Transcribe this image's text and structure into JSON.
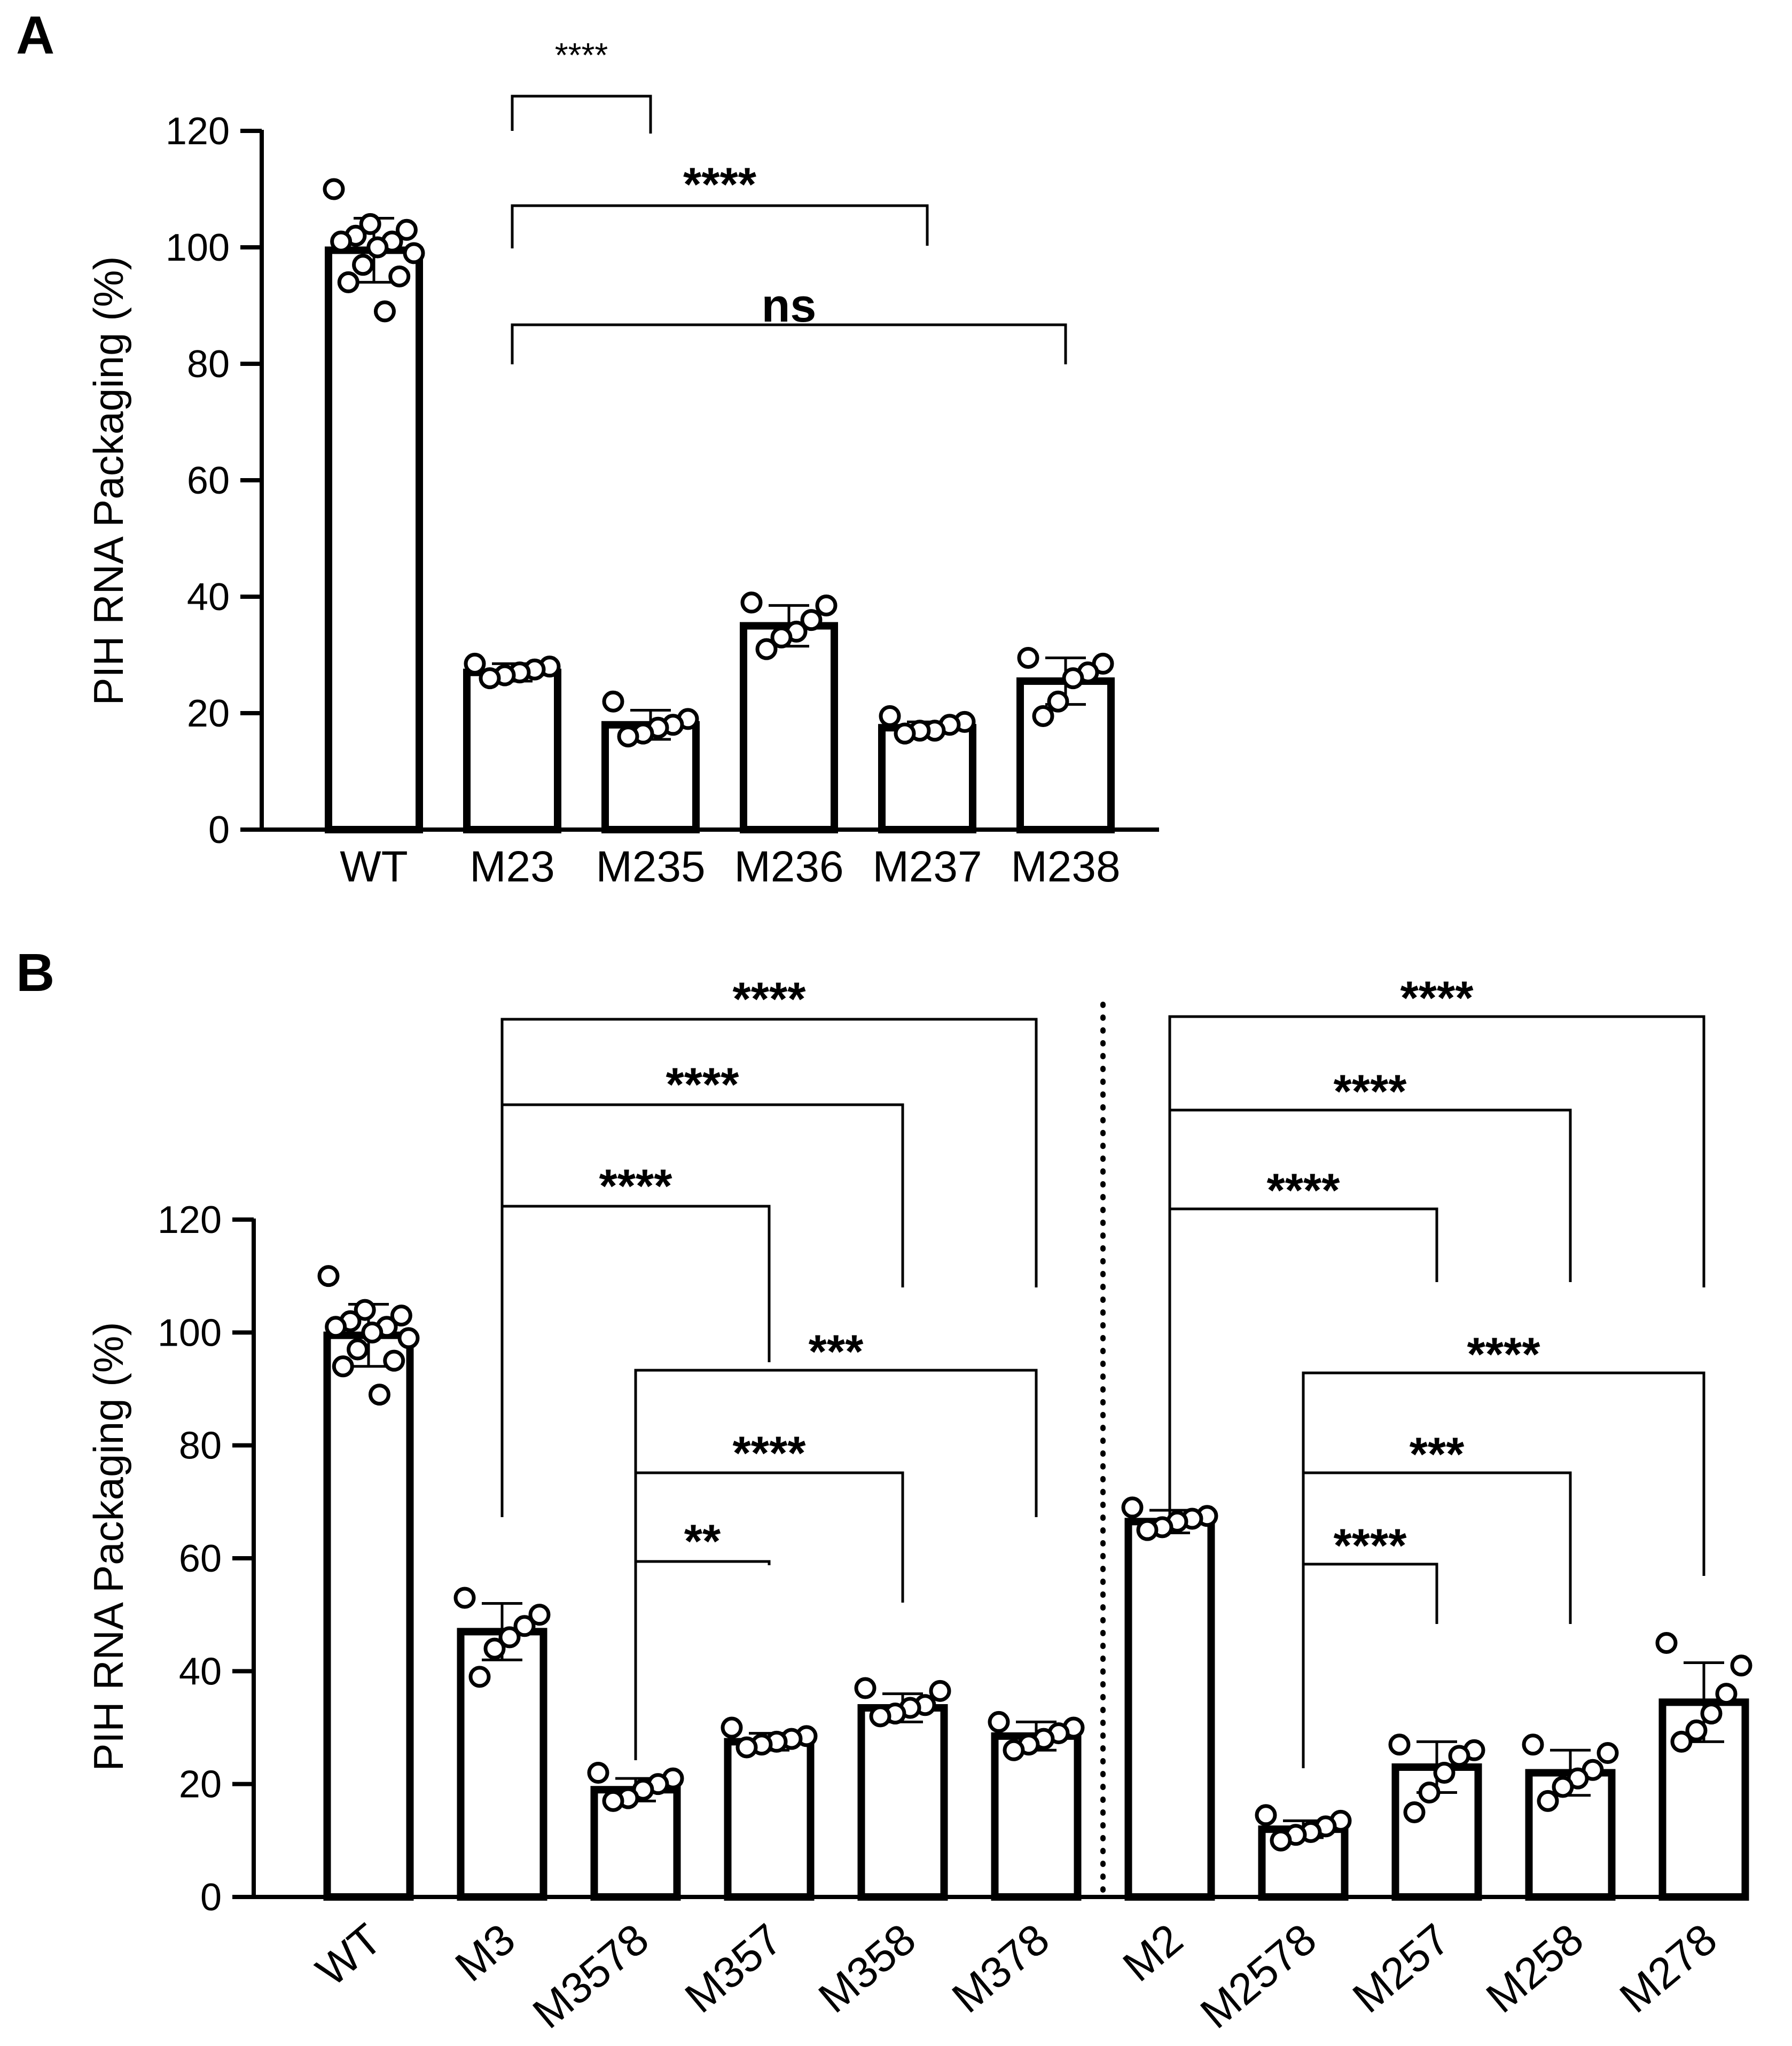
{
  "chart_data": [
    {
      "type": "bar",
      "panel": "A",
      "ylabel": "PIH RNA Packaging (%)",
      "ylim": [
        0,
        120
      ],
      "yticks": [
        0,
        20,
        40,
        60,
        80,
        100,
        120
      ],
      "categories": [
        "WT",
        "M23",
        "M235",
        "M236",
        "M237",
        "M238"
      ],
      "values": [
        99.5,
        27,
        18,
        35,
        17.5,
        25.5
      ],
      "error": [
        5.5,
        1.5,
        2.5,
        3.5,
        1,
        4
      ],
      "points": [
        [
          110,
          104,
          103,
          102,
          101,
          101,
          100,
          99,
          97,
          95,
          94,
          89
        ],
        [
          28.5,
          28,
          27.5,
          27,
          26.5,
          26
        ],
        [
          22,
          19,
          18,
          17.5,
          16.5,
          16
        ],
        [
          39,
          38.5,
          36,
          34,
          33,
          31
        ],
        [
          19.5,
          18.5,
          18,
          17,
          17,
          16.5
        ],
        [
          29.5,
          28.5,
          27,
          26,
          22,
          19.5
        ]
      ],
      "comparisons": [
        {
          "from": "M23",
          "to": "M235",
          "label": "****"
        },
        {
          "from": "M23",
          "to": "M237",
          "label": "****"
        },
        {
          "from": "M23",
          "to": "M238",
          "label": "ns"
        }
      ]
    },
    {
      "type": "bar",
      "panel": "B",
      "ylabel": "PIH RNA Packaging (%)",
      "ylim": [
        0,
        120
      ],
      "yticks": [
        0,
        20,
        40,
        60,
        80,
        100,
        120
      ],
      "categories": [
        "WT",
        "M3",
        "M3578",
        "M357",
        "M358",
        "M378",
        "M2",
        "M2578",
        "M257",
        "M258",
        "M278"
      ],
      "values": [
        99.5,
        47,
        19,
        27.5,
        33.5,
        28.5,
        66.5,
        12,
        23,
        22,
        34.5
      ],
      "error": [
        5.5,
        5,
        2,
        1.5,
        2.5,
        2.5,
        2,
        1.5,
        4.5,
        4,
        7
      ],
      "points": [
        [
          110,
          104,
          103,
          102,
          101,
          101,
          100,
          99,
          97,
          95,
          94,
          89
        ],
        [
          53,
          50,
          48,
          46,
          44,
          39
        ],
        [
          22,
          21,
          20,
          19,
          17.5,
          17
        ],
        [
          30,
          28.5,
          28,
          27.5,
          27,
          26.5
        ],
        [
          37,
          36.5,
          34,
          33.5,
          32.5,
          32
        ],
        [
          31,
          30,
          29,
          28,
          27,
          26
        ],
        [
          69,
          67.5,
          67,
          66.5,
          65.5,
          65
        ],
        [
          14.5,
          13.5,
          12.5,
          11.5,
          11,
          10
        ],
        [
          27,
          26,
          25,
          22,
          18.5,
          15
        ],
        [
          27,
          25.5,
          22.5,
          21,
          19.5,
          17
        ],
        [
          45,
          41,
          36,
          32.5,
          29.5,
          27.5
        ]
      ],
      "divider_after": "M378",
      "comparisons": [
        {
          "from": "M3",
          "to": "M357",
          "label": "****"
        },
        {
          "from": "M3",
          "to": "M358",
          "label": "****"
        },
        {
          "from": "M3",
          "to": "M378",
          "label": "****"
        },
        {
          "from": "M3578",
          "to": "M357",
          "label": "**"
        },
        {
          "from": "M3578",
          "to": "M358",
          "label": "****"
        },
        {
          "from": "M3578",
          "to": "M378",
          "label": "***"
        },
        {
          "from": "M2",
          "to": "M257",
          "label": "****"
        },
        {
          "from": "M2",
          "to": "M258",
          "label": "****"
        },
        {
          "from": "M2",
          "to": "M278",
          "label": "****"
        },
        {
          "from": "M2578",
          "to": "M257",
          "label": "****"
        },
        {
          "from": "M2578",
          "to": "M258",
          "label": "***"
        },
        {
          "from": "M2578",
          "to": "M278",
          "label": "****"
        }
      ]
    }
  ]
}
